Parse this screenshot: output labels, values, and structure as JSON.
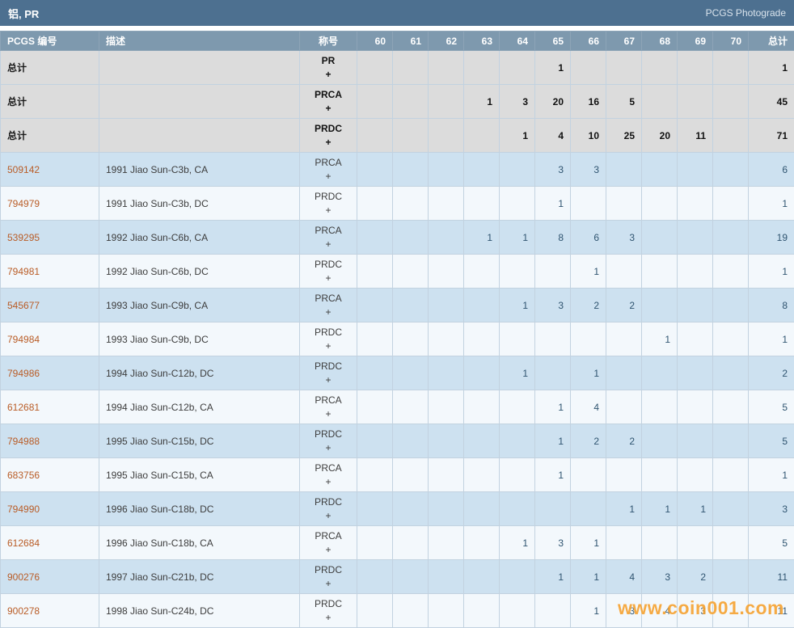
{
  "header": {
    "title": "铝, PR",
    "photograde_label": "PCGS Photograde"
  },
  "table": {
    "columns": [
      "PCGS 编号",
      "描述",
      "称号",
      "60",
      "61",
      "62",
      "63",
      "64",
      "65",
      "66",
      "67",
      "68",
      "69",
      "70",
      "总计"
    ],
    "rows": [
      {
        "kind": "summary",
        "pcgs": "总计",
        "desc": "",
        "designation": "PR",
        "plus": "+",
        "grades": [
          "",
          "",
          "",
          "",
          "",
          "1",
          "",
          "",
          "",
          "",
          ""
        ],
        "total": "1"
      },
      {
        "kind": "summary",
        "pcgs": "总计",
        "desc": "",
        "designation": "PRCA",
        "plus": "+",
        "grades": [
          "",
          "",
          "",
          "1",
          "3",
          "20",
          "16",
          "5",
          "",
          "",
          ""
        ],
        "total": "45"
      },
      {
        "kind": "summary",
        "pcgs": "总计",
        "desc": "",
        "designation": "PRDC",
        "plus": "+",
        "grades": [
          "",
          "",
          "",
          "",
          "1",
          "4",
          "10",
          "25",
          "20",
          "11",
          ""
        ],
        "total": "71"
      },
      {
        "kind": "data",
        "pcgs": "509142",
        "desc": "1991 Jiao Sun-C3b, CA",
        "designation": "PRCA",
        "plus": "+",
        "grades": [
          "",
          "",
          "",
          "",
          "",
          "3",
          "3",
          "",
          "",
          "",
          ""
        ],
        "total": "6"
      },
      {
        "kind": "data",
        "pcgs": "794979",
        "desc": "1991 Jiao Sun-C3b, DC",
        "designation": "PRDC",
        "plus": "+",
        "grades": [
          "",
          "",
          "",
          "",
          "",
          "1",
          "",
          "",
          "",
          "",
          ""
        ],
        "total": "1"
      },
      {
        "kind": "data",
        "pcgs": "539295",
        "desc": "1992 Jiao Sun-C6b, CA",
        "designation": "PRCA",
        "plus": "+",
        "grades": [
          "",
          "",
          "",
          "1",
          "1",
          "8",
          "6",
          "3",
          "",
          "",
          ""
        ],
        "total": "19"
      },
      {
        "kind": "data",
        "pcgs": "794981",
        "desc": "1992 Jiao Sun-C6b, DC",
        "designation": "PRDC",
        "plus": "+",
        "grades": [
          "",
          "",
          "",
          "",
          "",
          "",
          "1",
          "",
          "",
          "",
          ""
        ],
        "total": "1"
      },
      {
        "kind": "data",
        "pcgs": "545677",
        "desc": "1993 Jiao Sun-C9b, CA",
        "designation": "PRCA",
        "plus": "+",
        "grades": [
          "",
          "",
          "",
          "",
          "1",
          "3",
          "2",
          "2",
          "",
          "",
          ""
        ],
        "total": "8"
      },
      {
        "kind": "data",
        "pcgs": "794984",
        "desc": "1993 Jiao Sun-C9b, DC",
        "designation": "PRDC",
        "plus": "+",
        "grades": [
          "",
          "",
          "",
          "",
          "",
          "",
          "",
          "",
          "1",
          "",
          ""
        ],
        "total": "1"
      },
      {
        "kind": "data",
        "pcgs": "794986",
        "desc": "1994 Jiao Sun-C12b, DC",
        "designation": "PRDC",
        "plus": "+",
        "grades": [
          "",
          "",
          "",
          "",
          "1",
          "",
          "1",
          "",
          "",
          "",
          ""
        ],
        "total": "2"
      },
      {
        "kind": "data",
        "pcgs": "612681",
        "desc": "1994 Jiao Sun-C12b, CA",
        "designation": "PRCA",
        "plus": "+",
        "grades": [
          "",
          "",
          "",
          "",
          "",
          "1",
          "4",
          "",
          "",
          "",
          ""
        ],
        "total": "5"
      },
      {
        "kind": "data",
        "pcgs": "794988",
        "desc": "1995 Jiao Sun-C15b, DC",
        "designation": "PRDC",
        "plus": "+",
        "grades": [
          "",
          "",
          "",
          "",
          "",
          "1",
          "2",
          "2",
          "",
          "",
          ""
        ],
        "total": "5"
      },
      {
        "kind": "data",
        "pcgs": "683756",
        "desc": "1995 Jiao Sun-C15b, CA",
        "designation": "PRCA",
        "plus": "+",
        "grades": [
          "",
          "",
          "",
          "",
          "",
          "1",
          "",
          "",
          "",
          "",
          ""
        ],
        "total": "1"
      },
      {
        "kind": "data",
        "pcgs": "794990",
        "desc": "1996 Jiao Sun-C18b, DC",
        "designation": "PRDC",
        "plus": "+",
        "grades": [
          "",
          "",
          "",
          "",
          "",
          "",
          "",
          "1",
          "1",
          "1",
          ""
        ],
        "total": "3"
      },
      {
        "kind": "data",
        "pcgs": "612684",
        "desc": "1996 Jiao Sun-C18b, CA",
        "designation": "PRCA",
        "plus": "+",
        "grades": [
          "",
          "",
          "",
          "",
          "1",
          "3",
          "1",
          "",
          "",
          "",
          ""
        ],
        "total": "5"
      },
      {
        "kind": "data",
        "pcgs": "900276",
        "desc": "1997 Jiao Sun-C21b, DC",
        "designation": "PRDC",
        "plus": "+",
        "grades": [
          "",
          "",
          "",
          "",
          "",
          "1",
          "1",
          "4",
          "3",
          "2",
          ""
        ],
        "total": "11"
      },
      {
        "kind": "data",
        "pcgs": "900278",
        "desc": "1998 Jiao Sun-C24b, DC",
        "designation": "PRDC",
        "plus": "+",
        "grades": [
          "",
          "",
          "",
          "",
          "",
          "",
          "1",
          "3",
          "4",
          "3",
          ""
        ],
        "total": "11"
      }
    ]
  },
  "watermark": "www.coin001.com"
}
